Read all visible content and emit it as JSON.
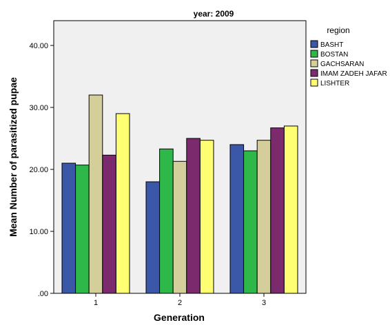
{
  "chart_data": {
    "type": "bar",
    "title": "year: 2009",
    "xlabel": "Generation",
    "ylabel": "Mean Number of parasitized pupae",
    "categories": [
      "1",
      "2",
      "3"
    ],
    "ylim": [
      0,
      44
    ],
    "yticks": [
      0,
      10,
      20,
      30,
      40
    ],
    "ytick_labels": [
      ".00",
      "10.00",
      "20.00",
      "30.00",
      "40.00"
    ],
    "grid": false,
    "legend": {
      "title": "region",
      "placement": "right"
    },
    "series": [
      {
        "name": "BASHT",
        "color": "#3b57a8",
        "values": [
          21.0,
          18.0,
          24.0
        ]
      },
      {
        "name": "BOSTAN",
        "color": "#2fb84a",
        "values": [
          20.7,
          23.3,
          23.0
        ]
      },
      {
        "name": "GACHSARAN",
        "color": "#d4cf9a",
        "values": [
          32.0,
          21.3,
          24.7
        ]
      },
      {
        "name": "IMAM ZADEH JAFAR",
        "color": "#7b2a6e",
        "values": [
          22.3,
          25.0,
          26.7
        ]
      },
      {
        "name": "LISHTER",
        "color": "#ffff73",
        "values": [
          29.0,
          24.7,
          27.0
        ]
      }
    ]
  }
}
